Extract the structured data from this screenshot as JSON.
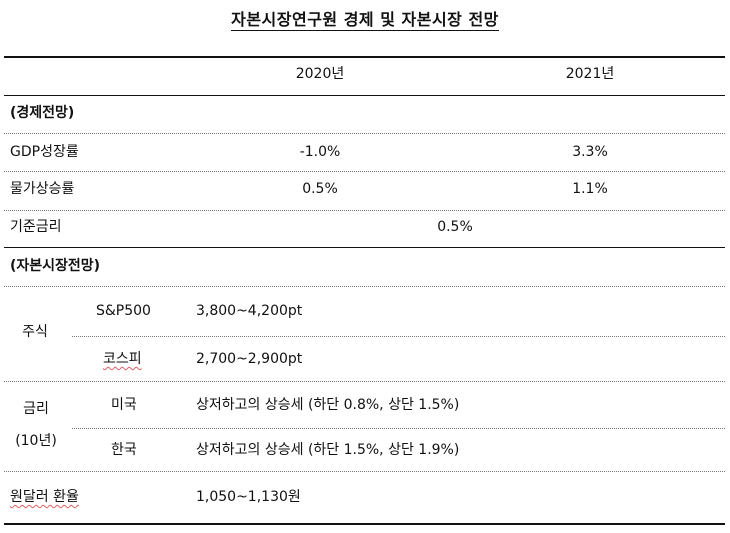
{
  "title": "자본시장연구원 경제 및 자본시장 전망",
  "header": {
    "col2020": "2020년",
    "col2021": "2021년"
  },
  "economy": {
    "section_label": "(경제전망)",
    "gdp": {
      "label": "GDP성장률",
      "v2020": "-1.0%",
      "v2021": "3.3%"
    },
    "inflation": {
      "label": "물가상승률",
      "v2020": "0.5%",
      "v2021": "1.1%"
    },
    "base_rate": {
      "label": "기준금리",
      "value": "0.5%"
    }
  },
  "capital_market": {
    "section_label": "(자본시장전망)",
    "stocks": {
      "label": "주식",
      "sp500": {
        "label": "S&P500",
        "value": "3,800~4,200pt"
      },
      "kospi": {
        "label": "코스피",
        "value": "2,700~2,900pt"
      }
    },
    "rates": {
      "label_line1": "금리",
      "label_line2": "(10년)",
      "us": {
        "label": "미국",
        "value": "상저하고의 상승세 (하단 0.8%, 상단 1.5%)"
      },
      "korea": {
        "label": "한국",
        "value": "상저하고의 상승세 (하단 1.5%, 상단 1.9%)"
      }
    },
    "fx": {
      "label": "원달러 환율",
      "value": "1,050~1,130원"
    }
  }
}
